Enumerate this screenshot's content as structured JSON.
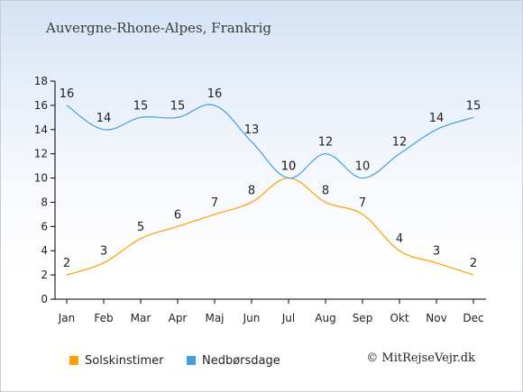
{
  "header": {
    "title": "Auvergne-Rhone-Alpes, Frankrig"
  },
  "footer": {
    "credit": "© MitRejseVejr.dk"
  },
  "chart_data": {
    "type": "line",
    "title": "Auvergne-Rhone-Alpes, Frankrig",
    "categories": [
      "Jan",
      "Feb",
      "Mar",
      "Apr",
      "Maj",
      "Jun",
      "Jul",
      "Aug",
      "Sep",
      "Okt",
      "Nov",
      "Dec"
    ],
    "ylim": [
      0,
      18
    ],
    "yticks": [
      0,
      2,
      4,
      6,
      8,
      10,
      12,
      14,
      16,
      18
    ],
    "grid": false,
    "legend_position": "bottom-left",
    "series": [
      {
        "name": "Solskinstimer",
        "color": "#ff9f00",
        "values": [
          2,
          3,
          5,
          6,
          7,
          8,
          10,
          8,
          7,
          4,
          3,
          2
        ]
      },
      {
        "name": "Nedbørsdage",
        "color": "#3f9fe6",
        "values": [
          16,
          14,
          15,
          15,
          16,
          13,
          10,
          12,
          10,
          12,
          14,
          15
        ]
      }
    ]
  }
}
